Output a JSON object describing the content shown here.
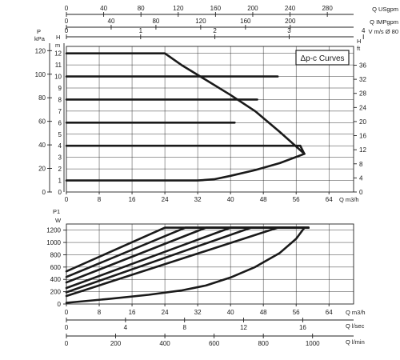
{
  "chart_data": [
    {
      "type": "line",
      "title": "",
      "legend_label": "Δp-c Curves",
      "xlabel": "Q m3/h",
      "x_ticks": [
        0,
        8,
        16,
        24,
        32,
        40,
        48,
        56,
        64
      ],
      "xlim": [
        0,
        70
      ],
      "top_axes": [
        {
          "label": "Q USgpm",
          "ticks": [
            "0",
            "40",
            "80",
            "120",
            "160",
            "200",
            "240",
            "280"
          ]
        },
        {
          "label": "Q IMPgpm",
          "ticks": [
            "0",
            "40",
            "80",
            "120",
            "160",
            "200"
          ]
        },
        {
          "label": "V m/s Ø 80",
          "ticks": [
            "0",
            "1",
            "2",
            "3",
            "4",
            "5"
          ]
        }
      ],
      "left_axes": [
        {
          "label": "P kPa",
          "ticks": [
            "0",
            "20",
            "40",
            "60",
            "80",
            "100",
            "120"
          ]
        },
        {
          "label": "H m",
          "ticks": [
            "0",
            "1",
            "2",
            "3",
            "4",
            "5",
            "6",
            "7",
            "8",
            "9",
            "10",
            "11",
            "12"
          ]
        }
      ],
      "right_axis": {
        "label": "H ft",
        "ticks": [
          "0",
          "4",
          "8",
          "12",
          "16",
          "20",
          "24",
          "28",
          "32",
          "36"
        ]
      },
      "ylim": [
        0,
        12.6
      ],
      "grid": true,
      "series": [
        {
          "x": [
            0,
            51.5
          ],
          "y": [
            10,
            10
          ]
        },
        {
          "x": [
            0,
            46.5
          ],
          "y": [
            8,
            8
          ]
        },
        {
          "x": [
            0,
            41
          ],
          "y": [
            6,
            6
          ]
        },
        {
          "x": [
            0,
            57
          ],
          "y": [
            4,
            4
          ]
        },
        {
          "x": [
            0,
            24,
            28,
            34,
            40,
            46,
            52,
            58
          ],
          "y": [
            12,
            12,
            11,
            9.7,
            8.4,
            7,
            5.2,
            3.3
          ]
        },
        {
          "x": [
            57,
            58,
            52,
            46,
            40,
            36,
            32,
            24,
            0
          ],
          "y": [
            4,
            3.3,
            2.5,
            1.9,
            1.4,
            1.1,
            1,
            1,
            1
          ]
        }
      ]
    },
    {
      "type": "line",
      "title": "",
      "xlabel": "Q m3/h",
      "ylabel": "P1 W",
      "x_ticks": [
        0,
        8,
        16,
        24,
        32,
        40,
        48,
        56,
        64
      ],
      "xlim": [
        0,
        70
      ],
      "y_ticks": [
        0,
        200,
        400,
        600,
        800,
        1000,
        1200
      ],
      "ylim": [
        0,
        1300
      ],
      "bottom_axes": [
        {
          "label": "Q l/sec",
          "ticks": [
            "0",
            "4",
            "8",
            "12",
            "16"
          ]
        },
        {
          "label": "Q l/min",
          "ticks": [
            "0",
            "200",
            "400",
            "600",
            "800",
            "1000"
          ]
        }
      ],
      "grid": true,
      "series": [
        {
          "x": [
            0,
            24,
            59
          ],
          "y": [
            530,
            1240,
            1240
          ]
        },
        {
          "x": [
            0,
            29,
            59
          ],
          "y": [
            440,
            1240,
            1240
          ]
        },
        {
          "x": [
            0,
            34,
            59
          ],
          "y": [
            350,
            1240,
            1240
          ]
        },
        {
          "x": [
            0,
            40,
            59
          ],
          "y": [
            260,
            1240,
            1240
          ]
        },
        {
          "x": [
            0,
            45,
            59
          ],
          "y": [
            190,
            1240,
            1240
          ]
        },
        {
          "x": [
            0,
            51.5,
            59
          ],
          "y": [
            130,
            1240,
            1240
          ]
        },
        {
          "x": [
            0,
            10,
            20,
            28,
            34,
            40,
            46,
            52,
            56,
            58
          ],
          "y": [
            20,
            80,
            150,
            220,
            300,
            430,
            600,
            830,
            1060,
            1240
          ]
        }
      ]
    }
  ]
}
